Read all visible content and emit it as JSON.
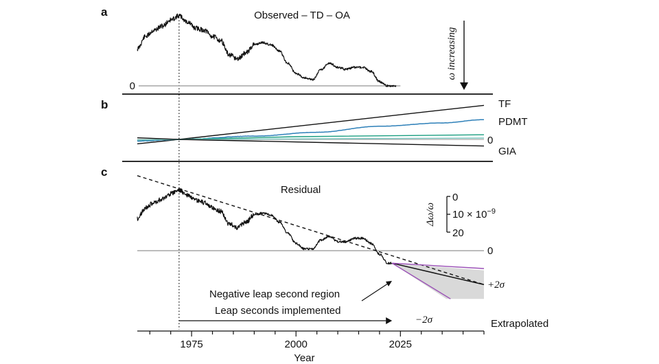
{
  "colors": {
    "black": "#111111",
    "zero": "#a6a6a6",
    "pdmt": "#2c7fb8",
    "green": "#1a9e80",
    "teal": "#7fc9c2",
    "sigma": "#9a4fb6",
    "band": "#d9d9d9"
  },
  "panels": {
    "a": {
      "letter": "a",
      "title": "Observed – TD – OA",
      "zero_label": "0",
      "arrow_label": "ω increasing"
    },
    "b": {
      "letter": "b",
      "labels": {
        "tf": "TF",
        "pdmt": "PDMT",
        "zero": "0",
        "gia": "GIA"
      }
    },
    "c": {
      "letter": "c",
      "title": "Residual",
      "zero_label": "0",
      "scale": {
        "axis_label": "Δω/ω",
        "ticks": [
          "0",
          "10 × 10",
          "20"
        ],
        "exponent": "−9"
      },
      "plus_sigma": "+2σ",
      "minus_sigma": "−2σ",
      "extrapolated": "Extrapolated",
      "neg_region": "Negative leap second region",
      "leap_impl": "Leap seconds implemented"
    }
  },
  "chart_data": {
    "type": "line",
    "x_axis": {
      "label": "Year",
      "ticks": [
        1975,
        2000,
        2025
      ],
      "range": [
        1962,
        2045
      ]
    },
    "y_axis": {
      "label": "Δω/ω",
      "unit": "×10^-9",
      "ticks": [
        0,
        10,
        20
      ],
      "inverted": true
    },
    "reference_line_year": 1972,
    "panel_a_observed": {
      "name": "Observed – TD – OA",
      "points": [
        [
          1962,
          -18
        ],
        [
          1964,
          -24
        ],
        [
          1966,
          -27
        ],
        [
          1968,
          -29
        ],
        [
          1970,
          -32
        ],
        [
          1972,
          -34
        ],
        [
          1974,
          -31
        ],
        [
          1976,
          -28
        ],
        [
          1978,
          -27
        ],
        [
          1980,
          -24
        ],
        [
          1982,
          -22
        ],
        [
          1984,
          -15
        ],
        [
          1986,
          -13
        ],
        [
          1988,
          -16
        ],
        [
          1990,
          -20
        ],
        [
          1992,
          -21
        ],
        [
          1994,
          -20
        ],
        [
          1996,
          -17
        ],
        [
          1998,
          -11
        ],
        [
          2000,
          -6
        ],
        [
          2002,
          -4
        ],
        [
          2004,
          -3
        ],
        [
          2006,
          -8
        ],
        [
          2008,
          -11
        ],
        [
          2010,
          -9
        ],
        [
          2012,
          -8
        ],
        [
          2014,
          -9
        ],
        [
          2016,
          -9
        ],
        [
          2018,
          -7
        ],
        [
          2020,
          -2
        ],
        [
          2022,
          0
        ],
        [
          2024,
          0
        ]
      ]
    },
    "panel_b_components": [
      {
        "name": "TF",
        "points": [
          [
            1962,
            0.8
          ],
          [
            1972,
            0
          ],
          [
            2045,
            -6.2
          ]
        ]
      },
      {
        "name": "PDMT",
        "points": [
          [
            1962,
            0.3
          ],
          [
            1972,
            0
          ],
          [
            1990,
            -0.6
          ],
          [
            2005,
            -1.3
          ],
          [
            2020,
            -2.4
          ],
          [
            2035,
            -3.0
          ],
          [
            2045,
            -3.6
          ]
        ]
      },
      {
        "name": "GIA",
        "points": [
          [
            1962,
            -0.3
          ],
          [
            1972,
            0
          ],
          [
            2045,
            1.2
          ]
        ]
      }
    ],
    "panel_c_residual": {
      "name": "Residual",
      "points": [
        [
          1962,
          -18
        ],
        [
          1964,
          -24
        ],
        [
          1966,
          -27
        ],
        [
          1968,
          -29
        ],
        [
          1970,
          -32
        ],
        [
          1972,
          -34
        ],
        [
          1974,
          -31
        ],
        [
          1976,
          -28
        ],
        [
          1978,
          -27
        ],
        [
          1980,
          -24
        ],
        [
          1982,
          -22
        ],
        [
          1984,
          -15
        ],
        [
          1986,
          -13
        ],
        [
          1988,
          -16
        ],
        [
          1990,
          -20
        ],
        [
          1992,
          -21
        ],
        [
          1994,
          -20
        ],
        [
          1996,
          -16
        ],
        [
          1998,
          -10
        ],
        [
          2000,
          -4
        ],
        [
          2002,
          -1
        ],
        [
          2004,
          -1
        ],
        [
          2006,
          -6
        ],
        [
          2008,
          -8
        ],
        [
          2010,
          -5
        ],
        [
          2012,
          -5
        ],
        [
          2014,
          -7
        ],
        [
          2016,
          -7
        ],
        [
          2018,
          -4
        ],
        [
          2020,
          2
        ],
        [
          2022,
          7
        ],
        [
          2023,
          7
        ]
      ]
    },
    "panel_c_trend": {
      "name": "Extrapolated trend",
      "points": [
        [
          1962,
          -42
        ],
        [
          2045,
          19
        ]
      ]
    },
    "panel_c_extrapolated": {
      "name": "Extrapolated",
      "points": [
        [
          2023,
          7
        ],
        [
          2045,
          19
        ]
      ]
    },
    "panel_c_plus_2sigma": {
      "name": "+2σ",
      "points": [
        [
          2023,
          7
        ],
        [
          2045,
          10
        ]
      ]
    },
    "panel_c_minus_2sigma": {
      "name": "−2σ",
      "points": [
        [
          2023,
          7
        ],
        [
          2037,
          27
        ]
      ]
    },
    "uncertainty_band": {
      "points": [
        [
          2023,
          7
        ],
        [
          2045,
          11
        ],
        [
          2045,
          27
        ],
        [
          2036,
          27
        ]
      ]
    },
    "annotations": {
      "negative_leap_second_region_start": 2023,
      "leap_seconds_implemented_range": [
        1972,
        2023
      ]
    }
  }
}
